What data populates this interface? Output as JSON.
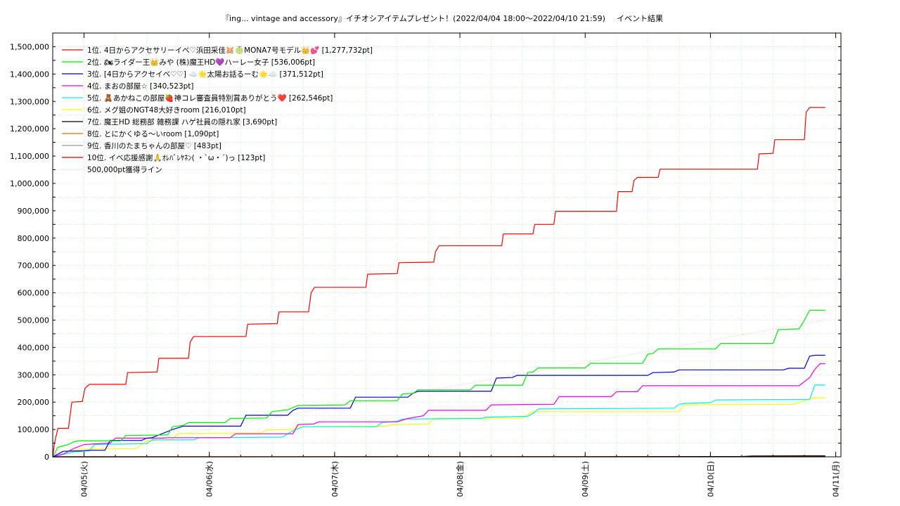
{
  "chart_data": {
    "type": "line",
    "title": "『ing... vintage and accessory』イチオシアイテムプレゼント！(2022/04/04 18:00〜2022/04/10 21:59)",
    "subtitle": "イベント結果",
    "xlabel": "",
    "ylabel": "",
    "x_ticks": [
      "04/05(火)",
      "04/06(水)",
      "04/07(木)",
      "04/08(金)",
      "04/09(土)",
      "04/10(日)",
      "04/11(月)"
    ],
    "xlim": [
      "2022/04/04 18:00",
      "2022/04/11 01:00"
    ],
    "ylim": [
      0,
      1550000
    ],
    "y_ticks": [
      "0",
      "100,000",
      "200,000",
      "300,000",
      "400,000",
      "500,000",
      "600,000",
      "700,000",
      "800,000",
      "900,000",
      "1,000,000",
      "1,100,000",
      "1,200,000",
      "1,300,000",
      "1,400,000",
      "1,500,000"
    ],
    "grid": true,
    "legend_position": "top-left",
    "series": [
      {
        "name": "1位. 4日からアクセサリーイベ♡浜田采佳🐹🍈MONA7号モデル👑💕 [1,277,732pt]",
        "color": "#ff0000",
        "points": [
          [
            "2022/04/04 18:00",
            0
          ],
          [
            "2022/04/04 18:20",
            50000
          ],
          [
            "2022/04/04 19:00",
            104000
          ],
          [
            "2022/04/04 21:00",
            104000
          ],
          [
            "2022/04/04 21:40",
            200000
          ],
          [
            "2022/04/04 23:40",
            202000
          ],
          [
            "2022/04/05 00:10",
            250000
          ],
          [
            "2022/04/05 01:00",
            265000
          ],
          [
            "2022/04/05 08:00",
            265000
          ],
          [
            "2022/04/05 08:20",
            308000
          ],
          [
            "2022/04/05 14:00",
            310000
          ],
          [
            "2022/04/05 14:20",
            360000
          ],
          [
            "2022/04/05 20:00",
            360000
          ],
          [
            "2022/04/05 20:20",
            420000
          ],
          [
            "2022/04/05 21:00",
            440000
          ],
          [
            "2022/04/06 07:00",
            440000
          ],
          [
            "2022/04/06 07:20",
            485000
          ],
          [
            "2022/04/06 13:00",
            487000
          ],
          [
            "2022/04/06 13:20",
            530000
          ],
          [
            "2022/04/06 19:00",
            530000
          ],
          [
            "2022/04/06 19:30",
            600000
          ],
          [
            "2022/04/06 20:10",
            620000
          ],
          [
            "2022/04/07 06:00",
            620000
          ],
          [
            "2022/04/07 06:20",
            668000
          ],
          [
            "2022/04/07 12:00",
            670000
          ],
          [
            "2022/04/07 12:20",
            710000
          ],
          [
            "2022/04/07 19:00",
            712000
          ],
          [
            "2022/04/07 19:20",
            750000
          ],
          [
            "2022/04/07 20:00",
            772000
          ],
          [
            "2022/04/08 08:00",
            772000
          ],
          [
            "2022/04/08 08:20",
            815000
          ],
          [
            "2022/04/08 14:00",
            815000
          ],
          [
            "2022/04/08 14:20",
            850000
          ],
          [
            "2022/04/08 18:00",
            850000
          ],
          [
            "2022/04/08 18:20",
            898000
          ],
          [
            "2022/04/09 06:00",
            898000
          ],
          [
            "2022/04/09 06:20",
            970000
          ],
          [
            "2022/04/09 09:00",
            970000
          ],
          [
            "2022/04/09 09:20",
            1010000
          ],
          [
            "2022/04/09 10:00",
            1022000
          ],
          [
            "2022/04/09 14:00",
            1022000
          ],
          [
            "2022/04/09 14:20",
            1052000
          ],
          [
            "2022/04/10 09:00",
            1052000
          ],
          [
            "2022/04/10 09:20",
            1108000
          ],
          [
            "2022/04/10 12:00",
            1110000
          ],
          [
            "2022/04/10 12:20",
            1160000
          ],
          [
            "2022/04/10 18:00",
            1160000
          ],
          [
            "2022/04/10 18:20",
            1260000
          ],
          [
            "2022/04/10 19:00",
            1277732
          ],
          [
            "2022/04/10 22:00",
            1277732
          ]
        ]
      },
      {
        "name": "2位. 🏍ライダー王👑みや (株)魔王HD💜ハーレー女子 [536,006pt]",
        "color": "#00ee00",
        "points": [
          [
            "2022/04/04 18:00",
            0
          ],
          [
            "2022/04/04 19:00",
            35000
          ],
          [
            "2022/04/04 21:00",
            45000
          ],
          [
            "2022/04/04 22:00",
            55000
          ],
          [
            "2022/04/04 23:00",
            58000
          ],
          [
            "2022/04/05 07:00",
            58000
          ],
          [
            "2022/04/05 08:00",
            78000
          ],
          [
            "2022/04/05 16:00",
            80000
          ],
          [
            "2022/04/05 17:00",
            110000
          ],
          [
            "2022/04/05 19:00",
            115000
          ],
          [
            "2022/04/05 20:00",
            125000
          ],
          [
            "2022/04/06 03:00",
            125000
          ],
          [
            "2022/04/06 04:00",
            140000
          ],
          [
            "2022/04/06 11:00",
            142000
          ],
          [
            "2022/04/06 12:00",
            165000
          ],
          [
            "2022/04/06 15:00",
            172000
          ],
          [
            "2022/04/06 17:00",
            188000
          ],
          [
            "2022/04/07 02:00",
            190000
          ],
          [
            "2022/04/07 03:00",
            205000
          ],
          [
            "2022/04/07 12:00",
            205000
          ],
          [
            "2022/04/07 13:00",
            230000
          ],
          [
            "2022/04/07 15:00",
            232000
          ],
          [
            "2022/04/07 16:00",
            245000
          ],
          [
            "2022/04/08 02:00",
            245000
          ],
          [
            "2022/04/08 03:00",
            262000
          ],
          [
            "2022/04/08 12:00",
            262000
          ],
          [
            "2022/04/08 13:00",
            308000
          ],
          [
            "2022/04/08 14:00",
            310000
          ],
          [
            "2022/04/08 15:00",
            325000
          ],
          [
            "2022/04/09 00:00",
            325000
          ],
          [
            "2022/04/09 01:00",
            342000
          ],
          [
            "2022/04/09 11:00",
            342000
          ],
          [
            "2022/04/09 12:00",
            375000
          ],
          [
            "2022/04/09 13:00",
            378000
          ],
          [
            "2022/04/09 14:00",
            395000
          ],
          [
            "2022/04/10 01:00",
            395000
          ],
          [
            "2022/04/10 02:00",
            415000
          ],
          [
            "2022/04/10 12:00",
            415000
          ],
          [
            "2022/04/10 13:00",
            465000
          ],
          [
            "2022/04/10 17:00",
            468000
          ],
          [
            "2022/04/10 18:00",
            500000
          ],
          [
            "2022/04/10 19:00",
            536006
          ],
          [
            "2022/04/10 22:00",
            536006
          ]
        ]
      },
      {
        "name": "3位. [4日からアクセイベ♡♡] ☁️🌟太陽お話るーむ🌟☁️ [371,512pt]",
        "color": "#0000dd",
        "points": [
          [
            "2022/04/04 18:00",
            0
          ],
          [
            "2022/04/04 20:00",
            20000
          ],
          [
            "2022/04/05 00:00",
            22000
          ],
          [
            "2022/04/05 01:00",
            24000
          ],
          [
            "2022/04/05 04:00",
            24000
          ],
          [
            "2022/04/05 05:00",
            60000
          ],
          [
            "2022/04/05 11:00",
            60000
          ],
          [
            "2022/04/05 12:00",
            68000
          ],
          [
            "2022/04/05 13:00",
            70000
          ],
          [
            "2022/04/05 17:00",
            100000
          ],
          [
            "2022/04/05 19:00",
            112000
          ],
          [
            "2022/04/06 06:00",
            112000
          ],
          [
            "2022/04/06 07:00",
            152000
          ],
          [
            "2022/04/06 15:00",
            152000
          ],
          [
            "2022/04/06 16:00",
            170000
          ],
          [
            "2022/04/06 17:00",
            178000
          ],
          [
            "2022/04/07 03:00",
            178000
          ],
          [
            "2022/04/07 04:00",
            218000
          ],
          [
            "2022/04/07 14:00",
            218000
          ],
          [
            "2022/04/07 15:00",
            232000
          ],
          [
            "2022/04/07 16:00",
            240000
          ],
          [
            "2022/04/08 06:00",
            240000
          ],
          [
            "2022/04/08 07:00",
            288000
          ],
          [
            "2022/04/08 10:00",
            290000
          ],
          [
            "2022/04/08 11:00",
            298000
          ],
          [
            "2022/04/09 12:00",
            298000
          ],
          [
            "2022/04/09 13:00",
            308000
          ],
          [
            "2022/04/09 17:00",
            310000
          ],
          [
            "2022/04/09 18:00",
            318000
          ],
          [
            "2022/04/10 14:00",
            318000
          ],
          [
            "2022/04/10 15:00",
            324000
          ],
          [
            "2022/04/10 18:00",
            324000
          ],
          [
            "2022/04/10 19:00",
            368000
          ],
          [
            "2022/04/10 20:00",
            371512
          ],
          [
            "2022/04/10 22:00",
            371512
          ]
        ]
      },
      {
        "name": "4位. まおの部屋☆ [340,523pt]",
        "color": "#ee00ee",
        "points": [
          [
            "2022/04/04 18:00",
            0
          ],
          [
            "2022/04/04 20:00",
            10000
          ],
          [
            "2022/04/04 22:00",
            30000
          ],
          [
            "2022/04/05 00:00",
            45000
          ],
          [
            "2022/04/05 05:00",
            50000
          ],
          [
            "2022/04/05 06:00",
            68000
          ],
          [
            "2022/04/05 15:00",
            68000
          ],
          [
            "2022/04/05 16:00",
            70000
          ],
          [
            "2022/04/06 04:00",
            70000
          ],
          [
            "2022/04/06 05:00",
            84000
          ],
          [
            "2022/04/06 16:00",
            84000
          ],
          [
            "2022/04/06 17:00",
            118000
          ],
          [
            "2022/04/06 20:00",
            120000
          ],
          [
            "2022/04/06 21:00",
            128000
          ],
          [
            "2022/04/07 12:00",
            128000
          ],
          [
            "2022/04/07 14:00",
            140000
          ],
          [
            "2022/04/07 17:00",
            150000
          ],
          [
            "2022/04/07 18:00",
            170000
          ],
          [
            "2022/04/08 05:00",
            170000
          ],
          [
            "2022/04/08 06:00",
            190000
          ],
          [
            "2022/04/08 18:00",
            192000
          ],
          [
            "2022/04/08 19:00",
            220000
          ],
          [
            "2022/04/09 05:00",
            220000
          ],
          [
            "2022/04/09 06:00",
            238000
          ],
          [
            "2022/04/09 10:00",
            238000
          ],
          [
            "2022/04/09 11:00",
            260000
          ],
          [
            "2022/04/10 17:00",
            260000
          ],
          [
            "2022/04/10 19:00",
            290000
          ],
          [
            "2022/04/10 20:00",
            320000
          ],
          [
            "2022/04/10 21:00",
            340523
          ],
          [
            "2022/04/10 22:00",
            340523
          ]
        ]
      },
      {
        "name": "5位. 🧸あかねこの部屋🍓神コレ審査員特別賞ありがとう❤️ [262,546pt]",
        "color": "#00eeee",
        "points": [
          [
            "2022/04/04 18:00",
            0
          ],
          [
            "2022/04/04 22:00",
            18000
          ],
          [
            "2022/04/05 01:00",
            22000
          ],
          [
            "2022/04/05 02:00",
            45000
          ],
          [
            "2022/04/05 12:00",
            48000
          ],
          [
            "2022/04/05 13:00",
            62000
          ],
          [
            "2022/04/05 21:00",
            62000
          ],
          [
            "2022/04/05 22:00",
            70000
          ],
          [
            "2022/04/06 14:00",
            72000
          ],
          [
            "2022/04/06 16:00",
            95000
          ],
          [
            "2022/04/06 18:00",
            110000
          ],
          [
            "2022/04/07 08:00",
            110000
          ],
          [
            "2022/04/07 09:00",
            125000
          ],
          [
            "2022/04/07 12:00",
            130000
          ],
          [
            "2022/04/07 13:00",
            138000
          ],
          [
            "2022/04/08 04:00",
            140000
          ],
          [
            "2022/04/08 05:00",
            145000
          ],
          [
            "2022/04/08 13:00",
            148000
          ],
          [
            "2022/04/08 14:00",
            158000
          ],
          [
            "2022/04/08 15:00",
            175000
          ],
          [
            "2022/04/09 17:00",
            178000
          ],
          [
            "2022/04/09 18:00",
            192000
          ],
          [
            "2022/04/09 19:00",
            195000
          ],
          [
            "2022/04/10 00:00",
            198000
          ],
          [
            "2022/04/10 01:00",
            208000
          ],
          [
            "2022/04/10 19:00",
            210000
          ],
          [
            "2022/04/10 20:00",
            262546
          ],
          [
            "2022/04/10 22:00",
            262546
          ]
        ]
      },
      {
        "name": "6位. メグ姐のNGT48大好きroom [216,010pt]",
        "color": "#ffff00",
        "points": [
          [
            "2022/04/04 18:00",
            0
          ],
          [
            "2022/04/04 20:00",
            20000
          ],
          [
            "2022/04/05 00:00",
            28000
          ],
          [
            "2022/04/05 10:00",
            30000
          ],
          [
            "2022/04/05 12:00",
            58000
          ],
          [
            "2022/04/05 17:00",
            65000
          ],
          [
            "2022/04/05 18:00",
            85000
          ],
          [
            "2022/04/06 10:00",
            88000
          ],
          [
            "2022/04/06 11:00",
            98000
          ],
          [
            "2022/04/06 16:00",
            100000
          ],
          [
            "2022/04/06 17:00",
            110000
          ],
          [
            "2022/04/07 10:00",
            112000
          ],
          [
            "2022/04/07 11:00",
            118000
          ],
          [
            "2022/04/07 18:00",
            120000
          ],
          [
            "2022/04/07 19:00",
            140000
          ],
          [
            "2022/04/08 12:00",
            142000
          ],
          [
            "2022/04/08 14:00",
            165000
          ],
          [
            "2022/04/09 18:00",
            165000
          ],
          [
            "2022/04/09 19:00",
            190000
          ],
          [
            "2022/04/10 16:00",
            192000
          ],
          [
            "2022/04/10 18:00",
            205000
          ],
          [
            "2022/04/10 20:00",
            216010
          ],
          [
            "2022/04/10 22:00",
            216010
          ]
        ]
      },
      {
        "name": "7位. 魔王HD 総務部 雑務課 ハゲ社員の隠れ家 [3,690pt]",
        "color": "#000000",
        "points": [
          [
            "2022/04/04 18:00",
            0
          ],
          [
            "2022/04/09 00:00",
            500
          ],
          [
            "2022/04/10 06:00",
            1000
          ],
          [
            "2022/04/10 08:00",
            3000
          ],
          [
            "2022/04/10 22:00",
            3690
          ]
        ]
      },
      {
        "name": "8位. とにかくゆる〜いroom [1,090pt]",
        "color": "#ff6600",
        "points": [
          [
            "2022/04/04 18:00",
            0
          ],
          [
            "2022/04/08 12:00",
            300
          ],
          [
            "2022/04/10 22:00",
            1090
          ]
        ]
      },
      {
        "name": "9位. 香川のたまちゃんの部屋♡ [483pt]",
        "color": "#999999",
        "points": [
          [
            "2022/04/04 18:00",
            0
          ],
          [
            "2022/04/10 22:00",
            483
          ]
        ]
      },
      {
        "name": "10位. イベ応援感謝🙏ｵﾚﾊﾞﾚﾔﾈﾝ( ・`ω・´)っ [123pt]",
        "color": "#dd0000",
        "points": [
          [
            "2022/04/04 18:00",
            0
          ],
          [
            "2022/04/10 22:00",
            123
          ]
        ]
      }
    ],
    "reference_line": {
      "name": "500,000pt獲得ライン",
      "color": "#ffaaaa",
      "from": [
        "2022/04/04 18:00",
        0
      ],
      "to": [
        "2022/04/10 22:00",
        500000
      ]
    }
  }
}
